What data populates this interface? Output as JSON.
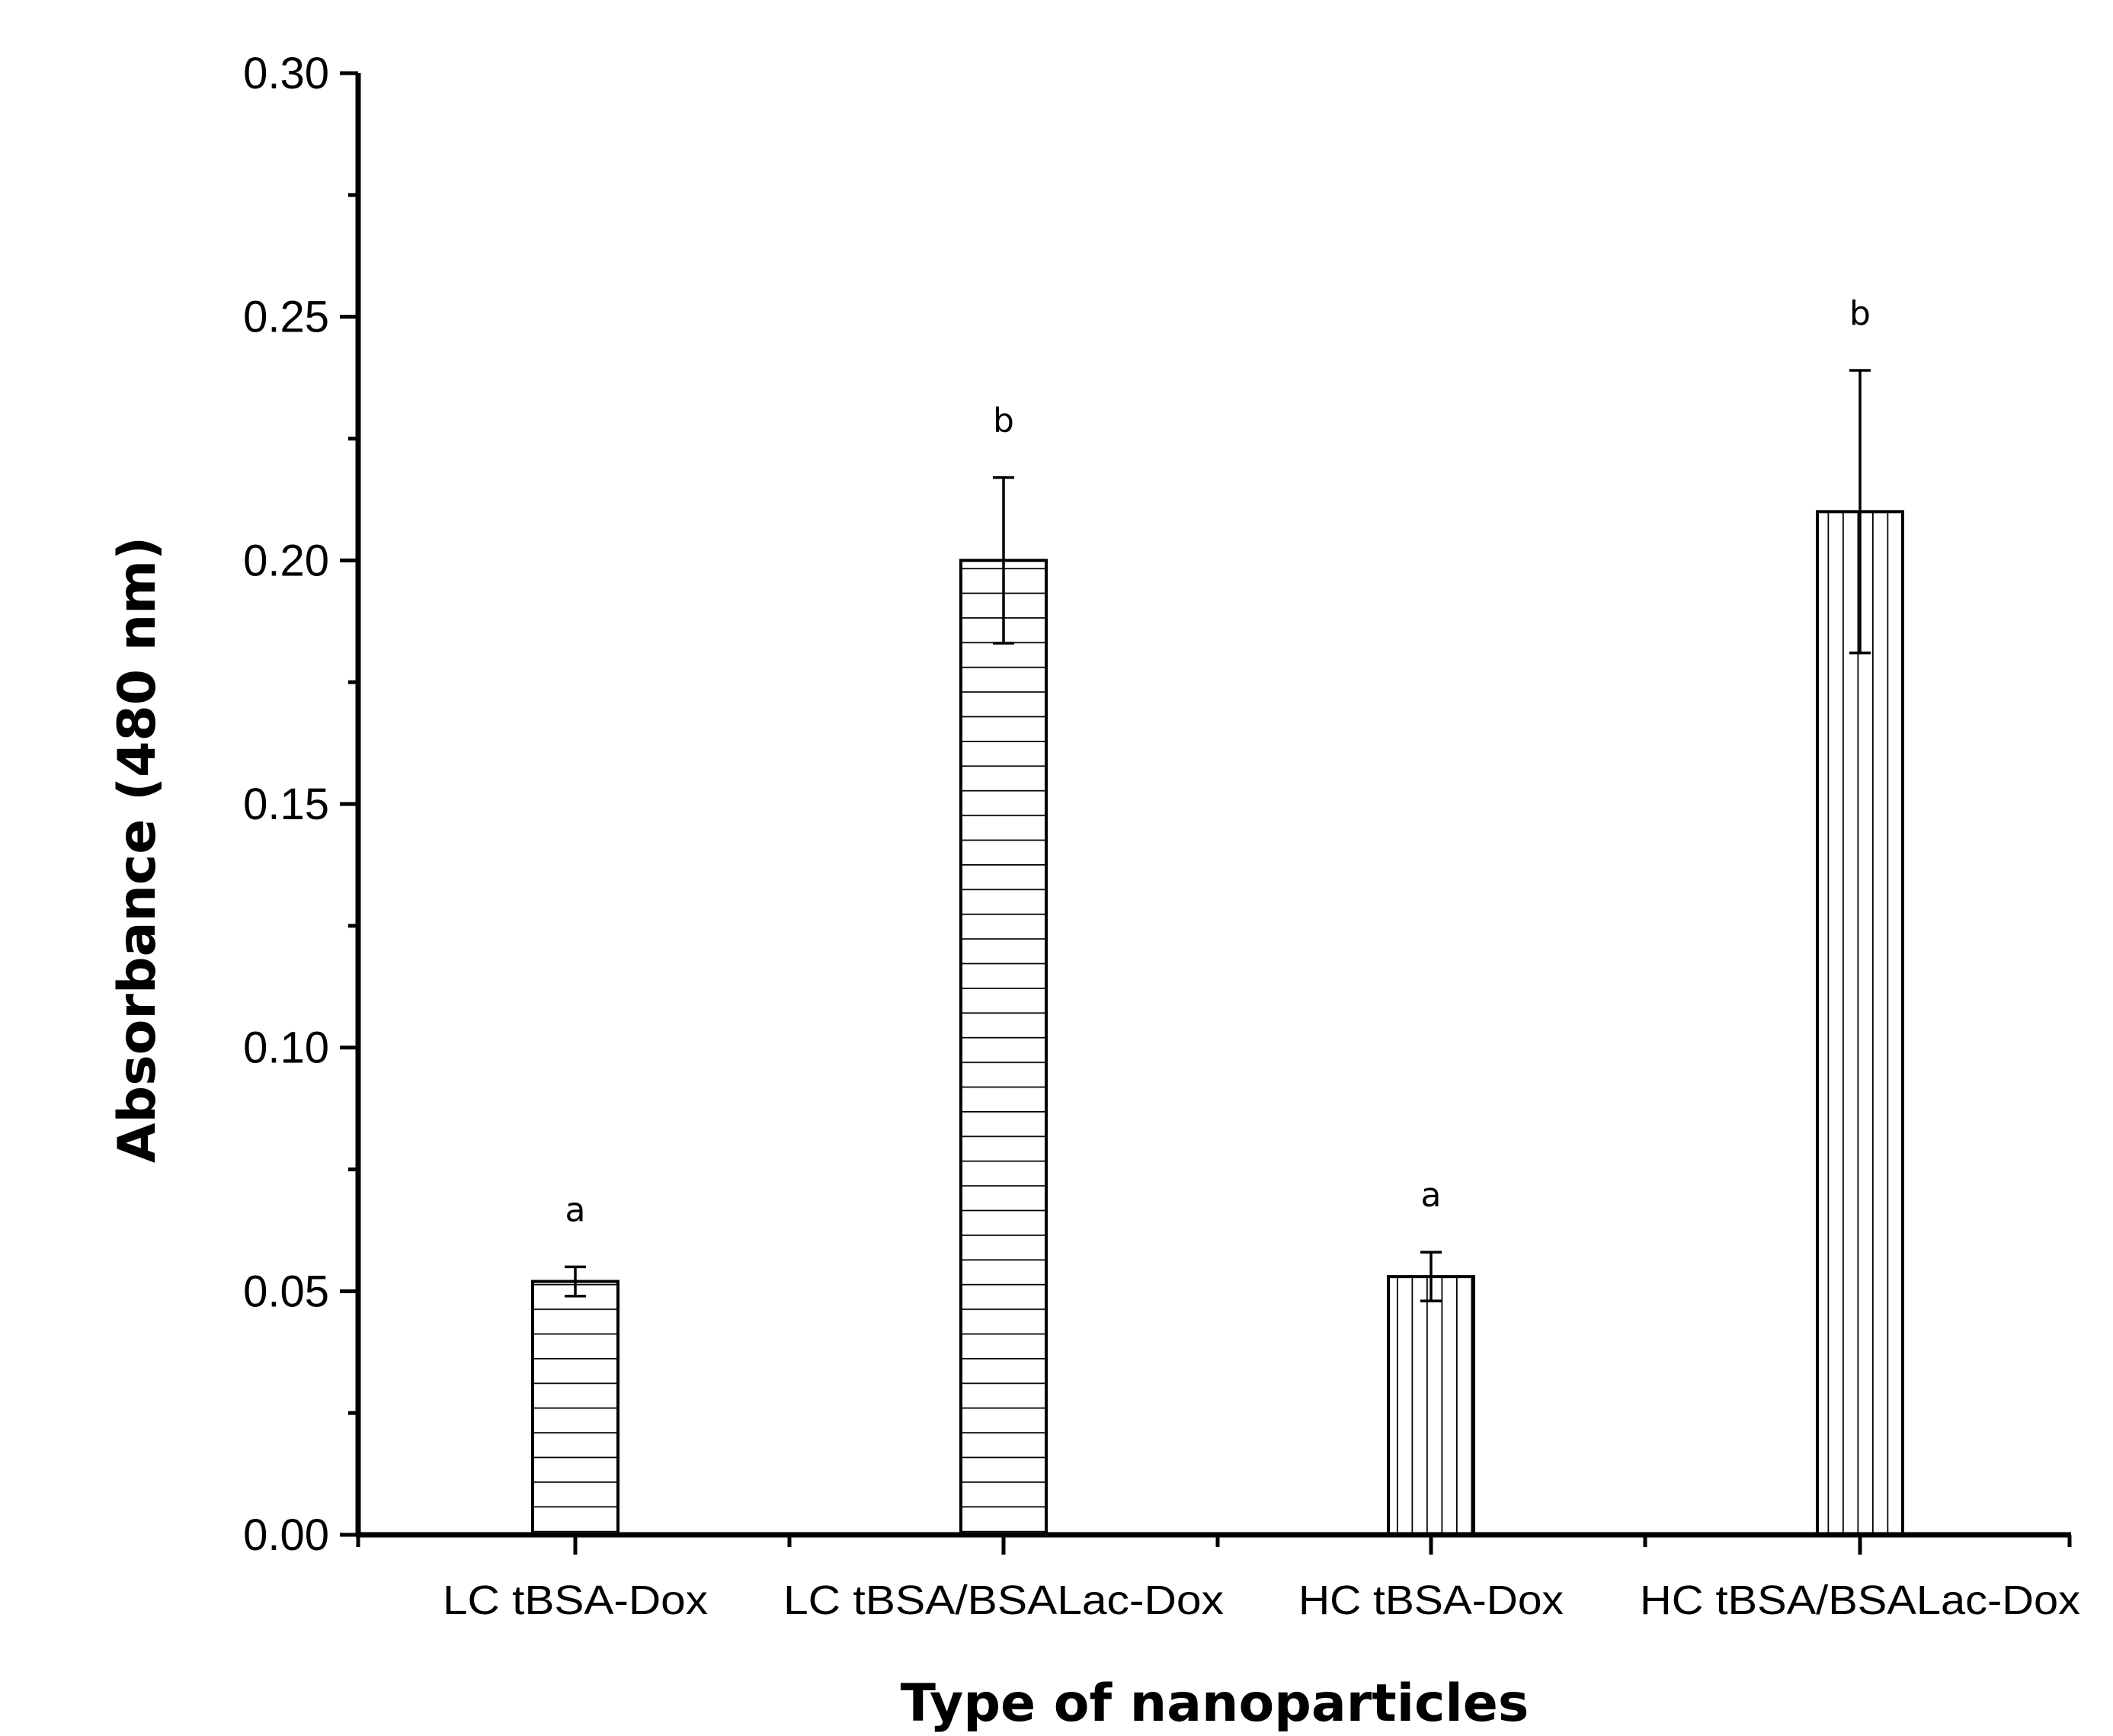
{
  "chart_data": {
    "type": "bar",
    "title": "",
    "xlabel": "Type of nanoparticles",
    "ylabel": "Absorbance (480 nm)",
    "ylim": [
      0,
      0.3
    ],
    "y_ticks": [
      "0.00",
      "0.05",
      "0.10",
      "0.15",
      "0.20",
      "0.25",
      "0.30"
    ],
    "categories": [
      "LC tBSA-Dox",
      "LC tBSA/BSALac-Dox",
      "HC tBSA-Dox",
      "HC tBSA/BSALac-Dox"
    ],
    "values": [
      0.052,
      0.2,
      0.053,
      0.21
    ],
    "errors": [
      0.003,
      0.017,
      0.005,
      0.029
    ],
    "significance": [
      "a",
      "b",
      "a",
      "b"
    ],
    "patterns": [
      "horizontal",
      "horizontal",
      "vertical",
      "vertical"
    ],
    "grid": false,
    "colors": {
      "bar_fill": "#ffffff",
      "stroke": "#000000"
    }
  }
}
